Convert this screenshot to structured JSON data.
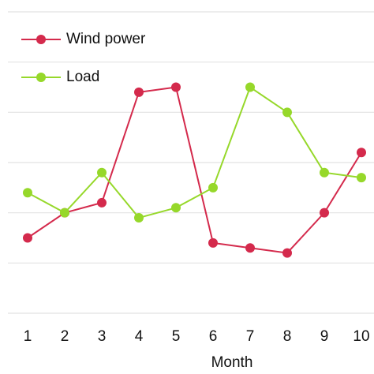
{
  "chart_data": {
    "type": "line",
    "x_label": "Month",
    "categories": [
      "1",
      "2",
      "3",
      "4",
      "5",
      "6",
      "7",
      "8",
      "9",
      "10"
    ],
    "series": [
      {
        "name": "Wind power",
        "color": "#d42a4c",
        "values": [
          1.5,
          2.0,
          2.2,
          4.4,
          4.5,
          1.4,
          1.3,
          1.2,
          2.0,
          3.2
        ]
      },
      {
        "name": "Load",
        "color": "#96d82a",
        "values": [
          2.4,
          2.0,
          2.8,
          1.9,
          2.1,
          2.5,
          4.5,
          4.0,
          2.8,
          2.7
        ]
      }
    ],
    "ylim": [
      0,
      6
    ],
    "yticks": [
      0,
      1,
      2,
      3,
      4,
      5,
      6
    ],
    "grid": true
  }
}
